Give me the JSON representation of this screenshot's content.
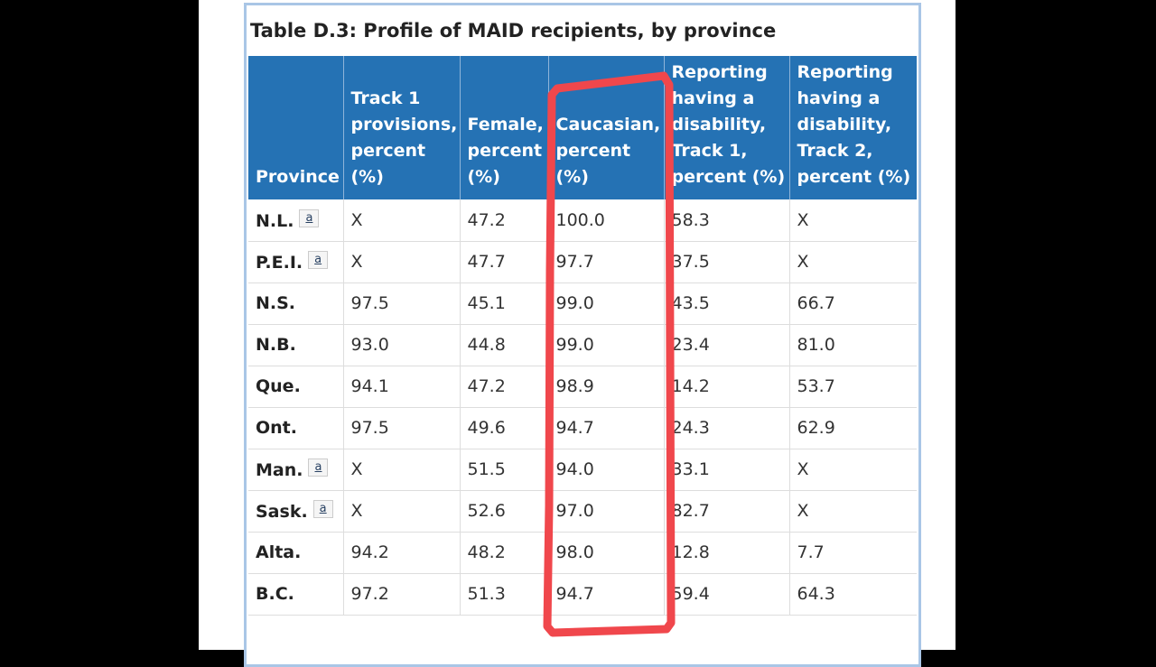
{
  "table": {
    "caption": "Table D.3: Profile of MAID recipients, by province",
    "headers": [
      "Province",
      "Track 1 provisions, percent (%)",
      "Female, percent (%)",
      "Caucasian, percent (%)",
      "Reporting having a disability, Track 1, percent (%)",
      "Reporting having a disability, Track 2, percent (%)"
    ],
    "footnote_label": "a",
    "rows": [
      {
        "province": "N.L.",
        "footnote": true,
        "track1": "X",
        "female": "47.2",
        "caucasian": "100.0",
        "dis_t1": "58.3",
        "dis_t2": "X"
      },
      {
        "province": "P.E.I.",
        "footnote": true,
        "track1": "X",
        "female": "47.7",
        "caucasian": "97.7",
        "dis_t1": "37.5",
        "dis_t2": "X"
      },
      {
        "province": "N.S.",
        "footnote": false,
        "track1": "97.5",
        "female": "45.1",
        "caucasian": "99.0",
        "dis_t1": "43.5",
        "dis_t2": "66.7"
      },
      {
        "province": "N.B.",
        "footnote": false,
        "track1": "93.0",
        "female": "44.8",
        "caucasian": "99.0",
        "dis_t1": "23.4",
        "dis_t2": "81.0"
      },
      {
        "province": "Que.",
        "footnote": false,
        "track1": "94.1",
        "female": "47.2",
        "caucasian": "98.9",
        "dis_t1": "14.2",
        "dis_t2": "53.7"
      },
      {
        "province": "Ont.",
        "footnote": false,
        "track1": "97.5",
        "female": "49.6",
        "caucasian": "94.7",
        "dis_t1": "24.3",
        "dis_t2": "62.9"
      },
      {
        "province": "Man.",
        "footnote": true,
        "track1": "X",
        "female": "51.5",
        "caucasian": "94.0",
        "dis_t1": "33.1",
        "dis_t2": "X"
      },
      {
        "province": "Sask.",
        "footnote": true,
        "track1": "X",
        "female": "52.6",
        "caucasian": "97.0",
        "dis_t1": "82.7",
        "dis_t2": "X"
      },
      {
        "province": "Alta.",
        "footnote": false,
        "track1": "94.2",
        "female": "48.2",
        "caucasian": "98.0",
        "dis_t1": "12.8",
        "dis_t2": "7.7"
      },
      {
        "province": "B.C.",
        "footnote": false,
        "track1": "97.2",
        "female": "51.3",
        "caucasian": "94.7",
        "dis_t1": "59.4",
        "dis_t2": "64.3"
      }
    ]
  },
  "colors": {
    "header_bg": "#2572b4",
    "highlight_stroke": "#f0474c",
    "frame_border": "#a9c6e6"
  }
}
